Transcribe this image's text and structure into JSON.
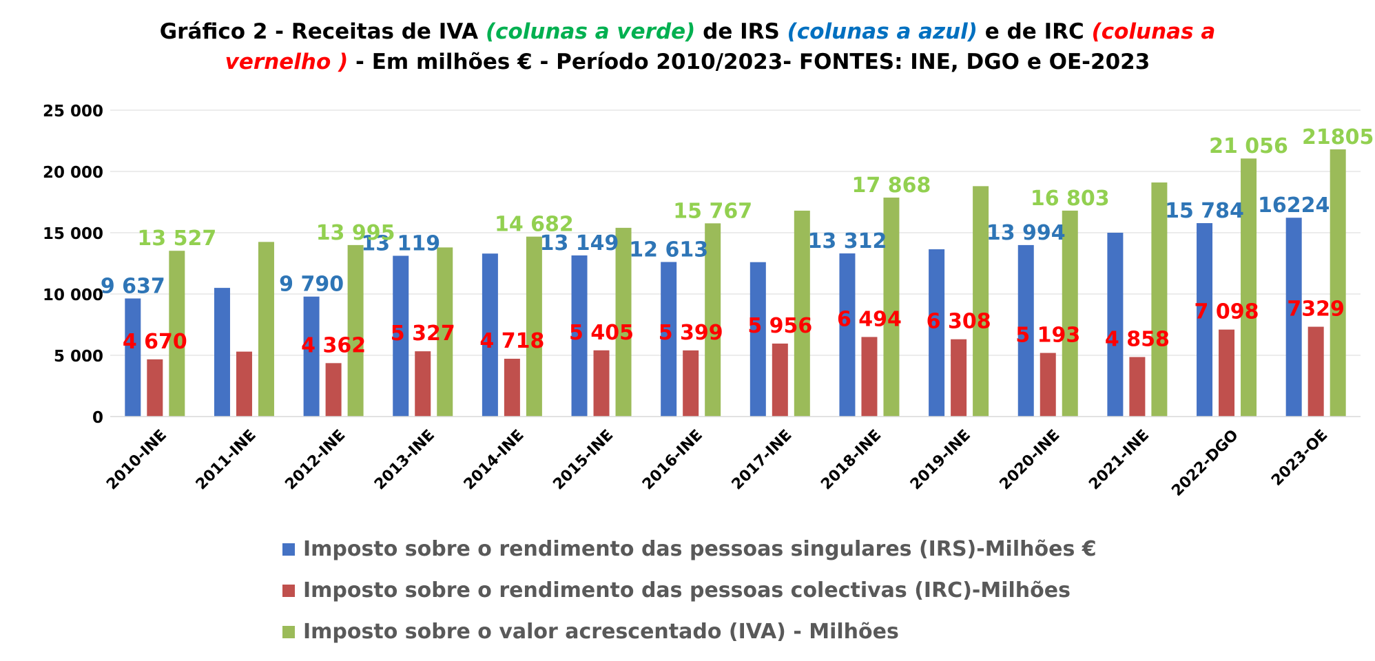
{
  "title": {
    "line1": [
      {
        "text": "Gráfico 2 - Receitas de IVA ",
        "color": "#000000",
        "italic": false
      },
      {
        "text": "(colunas a verde)",
        "color": "#00B050",
        "italic": true
      },
      {
        "text": " de IRS ",
        "color": "#000000",
        "italic": false
      },
      {
        "text": "(colunas a azul)",
        "color": "#0070C0",
        "italic": true
      },
      {
        "text": " e de IRC ",
        "color": "#000000",
        "italic": false
      },
      {
        "text": "(colunas a",
        "color": "#FF0000",
        "italic": true
      }
    ],
    "line2": [
      {
        "text": "vernelho )",
        "color": "#FF0000",
        "italic": true
      },
      {
        "text": " - Em milhões € - Período 2010/2023- FONTES: INE, DGO e OE-2023",
        "color": "#000000",
        "italic": false
      }
    ]
  },
  "chart_data": {
    "type": "bar",
    "categories": [
      "2010-INE",
      "2011-INE",
      "2012-INE",
      "2013-INE",
      "2014-INE",
      "2015-INE",
      "2016-INE",
      "2017-INE",
      "2018-INE",
      "2019-INE",
      "2020-INE",
      "2021-INE",
      "2022-DGO",
      "2023-OE"
    ],
    "ylim": [
      0,
      25000
    ],
    "yticks": [
      0,
      5000,
      10000,
      15000,
      20000,
      25000
    ],
    "ytick_labels": [
      "0",
      "5 000",
      "10 000",
      "15 000",
      "20 000",
      "25 000"
    ],
    "grid": true,
    "legend_position": "bottom",
    "series": [
      {
        "name": "Imposto sobre o rendimento das pessoas singulares (IRS)-Milhões €",
        "color": "#4472C4",
        "label_color": "#2E75B6",
        "values": [
          9637,
          10500,
          9790,
          13119,
          13300,
          13149,
          12613,
          12600,
          13312,
          13650,
          13994,
          15000,
          15784,
          16224
        ],
        "labels": [
          "9 637",
          "",
          "9 790",
          "13 119",
          "",
          "13 149",
          "12 613",
          "",
          "13 312",
          "",
          "13 994",
          "",
          "15 784",
          "16224"
        ]
      },
      {
        "name": "Imposto sobre o rendimento das pessoas colectivas (IRC)-Milhões",
        "color": "#C0504D",
        "label_color": "#FF0000",
        "values": [
          4670,
          5300,
          4362,
          5327,
          4718,
          5405,
          5399,
          5956,
          6494,
          6308,
          5193,
          4858,
          7098,
          7329
        ],
        "labels": [
          "4 670",
          "",
          "4 362",
          "5 327",
          "4 718",
          "5 405",
          "5 399",
          "5 956",
          "6 494",
          "6 308",
          "5 193",
          "4 858",
          "7 098",
          "7329"
        ]
      },
      {
        "name": "Imposto sobre o valor acrescentado (IVA) - Milhões",
        "color": "#9BBB59",
        "label_color": "#92D050",
        "values": [
          13527,
          14250,
          13995,
          13800,
          14682,
          15400,
          15767,
          16800,
          17868,
          18800,
          16803,
          19100,
          21056,
          21805
        ],
        "labels": [
          "13 527",
          "",
          "13 995",
          "",
          "14 682",
          "",
          "15 767",
          "",
          "17 868",
          "",
          "16 803",
          "",
          "21 056",
          "21805"
        ]
      }
    ]
  }
}
